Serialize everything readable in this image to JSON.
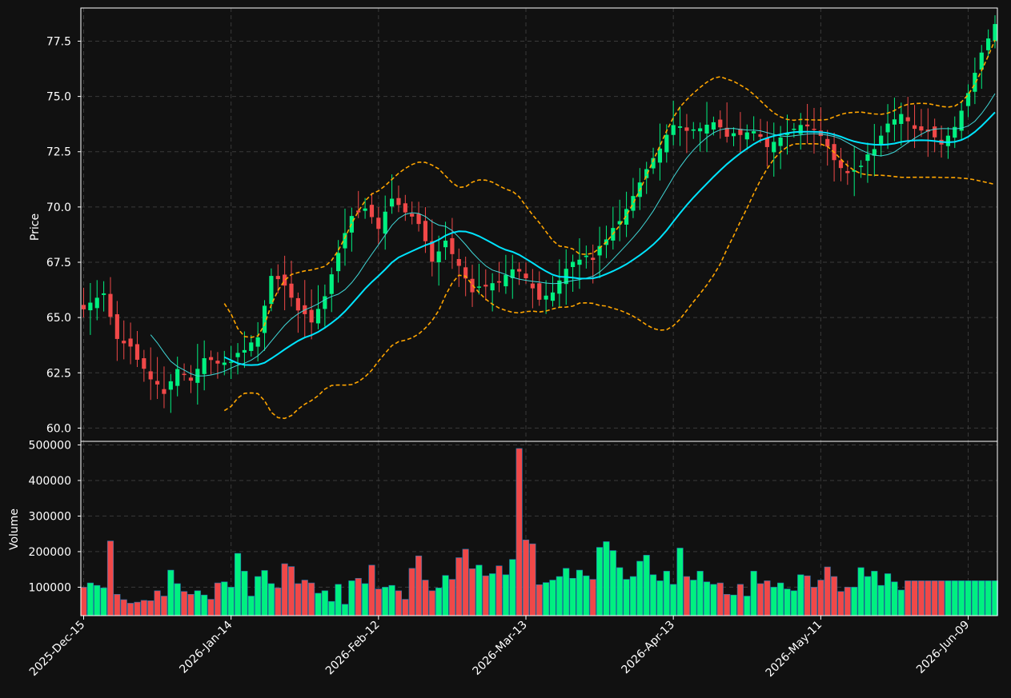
{
  "chart_data": {
    "type": "candlestick",
    "panels": [
      "price",
      "volume"
    ],
    "ylabel_price": "Price",
    "ylabel_volume": "Volume",
    "price_ylim": [
      59.4,
      79.0
    ],
    "price_yticks": [
      60.0,
      62.5,
      65.0,
      67.5,
      70.0,
      72.5,
      75.0,
      77.5
    ],
    "volume_ylim": [
      20000,
      510000
    ],
    "volume_yticks": [
      100000,
      200000,
      300000,
      400000,
      500000
    ],
    "xticks": [
      {
        "index": 0,
        "label": "2025-Dec-15"
      },
      {
        "index": 22,
        "label": "2026-Jan-14"
      },
      {
        "index": 44,
        "label": "2026-Feb-12"
      },
      {
        "index": 66,
        "label": "2026-Mar-13"
      },
      {
        "index": 88,
        "label": "2026-Apr-13"
      },
      {
        "index": 110,
        "label": "2026-May-11"
      },
      {
        "index": 132,
        "label": "2026-Jun-09"
      }
    ],
    "grid": true,
    "colors": {
      "background": "#111111",
      "up": "#00f080",
      "down": "#f04848",
      "volume_edge": "#1f78b4",
      "ma_slow": "#00e5ff",
      "ma_fast": "#40d8d8",
      "bands": "#ffa500",
      "grid": "#3a3a3a",
      "text": "#ffffff"
    },
    "bands_start_index": 21,
    "ma_fast_start_index": 10,
    "ma_slow_start_index": 21,
    "anchors": {
      "close": [
        [
          0,
          65.4
        ],
        [
          3,
          66.1
        ],
        [
          5,
          64.0
        ],
        [
          7,
          63.6
        ],
        [
          10,
          62.2
        ],
        [
          12,
          61.6
        ],
        [
          14,
          62.7
        ],
        [
          16,
          62.2
        ],
        [
          18,
          63.2
        ],
        [
          20,
          62.9
        ],
        [
          22,
          63.1
        ],
        [
          24,
          63.5
        ],
        [
          26,
          64.2
        ],
        [
          28,
          66.9
        ],
        [
          30,
          66.5
        ],
        [
          32,
          65.3
        ],
        [
          34,
          64.8
        ],
        [
          36,
          66.0
        ],
        [
          38,
          67.9
        ],
        [
          40,
          69.6
        ],
        [
          42,
          69.9
        ],
        [
          44,
          69.0
        ],
        [
          46,
          70.4
        ],
        [
          48,
          69.8
        ],
        [
          50,
          69.3
        ],
        [
          52,
          67.5
        ],
        [
          54,
          68.5
        ],
        [
          56,
          67.3
        ],
        [
          58,
          66.2
        ],
        [
          60,
          66.5
        ],
        [
          62,
          66.6
        ],
        [
          64,
          67.2
        ],
        [
          66,
          66.8
        ],
        [
          68,
          65.8
        ],
        [
          70,
          66.2
        ],
        [
          72,
          67.2
        ],
        [
          74,
          67.7
        ],
        [
          76,
          67.7
        ],
        [
          78,
          68.6
        ],
        [
          80,
          69.4
        ],
        [
          82,
          70.5
        ],
        [
          84,
          71.7
        ],
        [
          86,
          72.7
        ],
        [
          88,
          73.7
        ],
        [
          90,
          73.4
        ],
        [
          92,
          73.6
        ],
        [
          94,
          73.8
        ],
        [
          96,
          73.2
        ],
        [
          98,
          73.3
        ],
        [
          100,
          73.4
        ],
        [
          102,
          72.8
        ],
        [
          104,
          73.1
        ],
        [
          106,
          73.6
        ],
        [
          108,
          73.7
        ],
        [
          110,
          73.2
        ],
        [
          112,
          72.1
        ],
        [
          114,
          71.5
        ],
        [
          116,
          71.9
        ],
        [
          118,
          72.7
        ],
        [
          120,
          73.8
        ],
        [
          122,
          74.2
        ],
        [
          124,
          73.5
        ],
        [
          126,
          73.4
        ],
        [
          128,
          72.9
        ],
        [
          130,
          73.6
        ],
        [
          132,
          75.2
        ],
        [
          134,
          77.0
        ],
        [
          136,
          78.3
        ]
      ],
      "volume": [
        [
          0,
          100000
        ],
        [
          1,
          112000
        ],
        [
          2,
          105000
        ],
        [
          3,
          98000
        ],
        [
          4,
          230000
        ],
        [
          5,
          80000
        ],
        [
          6,
          65000
        ],
        [
          7,
          55000
        ],
        [
          8,
          58000
        ],
        [
          9,
          63000
        ],
        [
          10,
          62000
        ],
        [
          11,
          90000
        ],
        [
          12,
          75000
        ],
        [
          13,
          148000
        ],
        [
          14,
          110000
        ],
        [
          15,
          88000
        ],
        [
          16,
          80000
        ],
        [
          17,
          90000
        ],
        [
          18,
          78000
        ],
        [
          19,
          66000
        ],
        [
          20,
          112000
        ],
        [
          21,
          115000
        ],
        [
          22,
          100000
        ],
        [
          23,
          195000
        ],
        [
          24,
          145000
        ],
        [
          25,
          75000
        ],
        [
          26,
          130000
        ],
        [
          27,
          147000
        ],
        [
          28,
          110000
        ],
        [
          29,
          98000
        ],
        [
          30,
          166000
        ],
        [
          31,
          158000
        ],
        [
          32,
          110000
        ],
        [
          33,
          120000
        ],
        [
          34,
          112000
        ],
        [
          35,
          83000
        ],
        [
          36,
          90000
        ],
        [
          37,
          60000
        ],
        [
          38,
          108000
        ],
        [
          39,
          52000
        ],
        [
          40,
          118000
        ],
        [
          41,
          125000
        ],
        [
          42,
          110000
        ],
        [
          43,
          162000
        ],
        [
          44,
          95000
        ],
        [
          45,
          100000
        ],
        [
          46,
          105000
        ],
        [
          47,
          90000
        ],
        [
          48,
          66000
        ],
        [
          49,
          153000
        ],
        [
          50,
          188000
        ],
        [
          51,
          120000
        ],
        [
          52,
          90000
        ],
        [
          53,
          98000
        ],
        [
          54,
          133000
        ],
        [
          55,
          122000
        ],
        [
          56,
          183000
        ],
        [
          57,
          207000
        ],
        [
          58,
          152000
        ],
        [
          59,
          162000
        ],
        [
          60,
          132000
        ],
        [
          61,
          138000
        ],
        [
          62,
          160000
        ],
        [
          63,
          135000
        ],
        [
          64,
          178000
        ],
        [
          65,
          490000
        ],
        [
          66,
          233000
        ],
        [
          67,
          222000
        ],
        [
          68,
          107000
        ],
        [
          69,
          113000
        ],
        [
          70,
          120000
        ],
        [
          71,
          130000
        ],
        [
          72,
          153000
        ],
        [
          73,
          125000
        ],
        [
          74,
          148000
        ],
        [
          75,
          132000
        ],
        [
          76,
          122000
        ],
        [
          77,
          212000
        ],
        [
          78,
          228000
        ],
        [
          79,
          203000
        ],
        [
          80,
          155000
        ],
        [
          81,
          122000
        ],
        [
          82,
          130000
        ],
        [
          83,
          173000
        ],
        [
          84,
          190000
        ],
        [
          85,
          135000
        ],
        [
          86,
          118000
        ],
        [
          87,
          145000
        ],
        [
          88,
          108000
        ],
        [
          89,
          210000
        ],
        [
          90,
          130000
        ],
        [
          91,
          120000
        ],
        [
          92,
          145000
        ],
        [
          93,
          115000
        ],
        [
          94,
          108000
        ],
        [
          95,
          112000
        ],
        [
          96,
          80000
        ],
        [
          97,
          78000
        ],
        [
          98,
          108000
        ],
        [
          99,
          75000
        ],
        [
          100,
          145000
        ],
        [
          101,
          110000
        ],
        [
          102,
          118000
        ],
        [
          103,
          100000
        ],
        [
          104,
          112000
        ],
        [
          105,
          95000
        ],
        [
          106,
          90000
        ],
        [
          107,
          135000
        ],
        [
          108,
          132000
        ],
        [
          109,
          100000
        ],
        [
          110,
          120000
        ],
        [
          111,
          157000
        ],
        [
          112,
          130000
        ],
        [
          113,
          88000
        ],
        [
          114,
          100000
        ],
        [
          115,
          100000
        ],
        [
          116,
          155000
        ],
        [
          117,
          130000
        ],
        [
          118,
          145000
        ],
        [
          119,
          105000
        ],
        [
          120,
          138000
        ],
        [
          121,
          115000
        ],
        [
          122,
          92000
        ],
        [
          123,
          118000
        ],
        [
          124,
          118000
        ],
        [
          125,
          118000
        ],
        [
          126,
          118000
        ],
        [
          127,
          118000
        ],
        [
          128,
          118000
        ],
        [
          129,
          118000
        ],
        [
          130,
          118000
        ],
        [
          131,
          118000
        ],
        [
          132,
          118000
        ],
        [
          133,
          118000
        ],
        [
          134,
          118000
        ],
        [
          135,
          118000
        ],
        [
          136,
          118000
        ]
      ]
    },
    "bars_count": 137
  }
}
